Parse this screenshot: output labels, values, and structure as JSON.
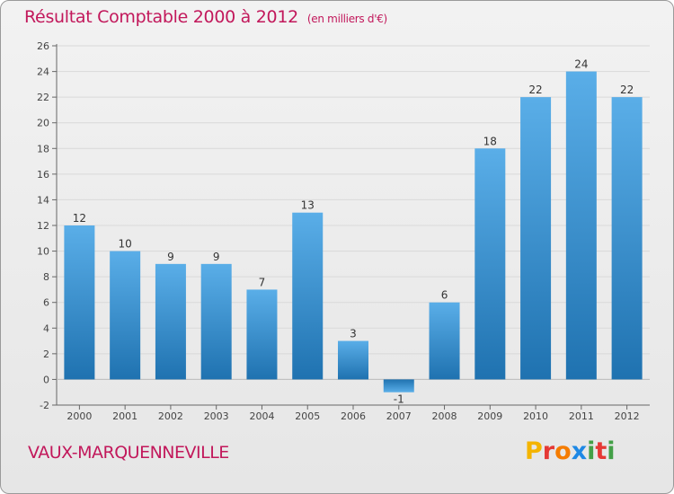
{
  "colors": {
    "title": "#c2185b",
    "bar_light": "#5aaee8",
    "bar_dark": "#1f72b0",
    "grid": "#d9d9d9",
    "axis": "#666666"
  },
  "footer": {
    "place_name": "VAUX-MARQUENNEVILLE",
    "logo_text": "Proxiti"
  },
  "chart_data": {
    "type": "bar",
    "title": "Résultat Comptable 2000 à 2012",
    "subtitle": "(en milliers d'€)",
    "xlabel": "",
    "ylabel": "",
    "categories": [
      "2000",
      "2001",
      "2002",
      "2003",
      "2004",
      "2005",
      "2006",
      "2007",
      "2008",
      "2009",
      "2010",
      "2011",
      "2012"
    ],
    "values": [
      12,
      10,
      9,
      9,
      7,
      13,
      3,
      -1,
      6,
      18,
      22,
      24,
      22
    ],
    "ylim": [
      -2,
      26
    ],
    "yticks": [
      -2,
      0,
      2,
      4,
      6,
      8,
      10,
      12,
      14,
      16,
      18,
      20,
      22,
      24,
      26
    ],
    "grid": true,
    "legend": "none"
  }
}
